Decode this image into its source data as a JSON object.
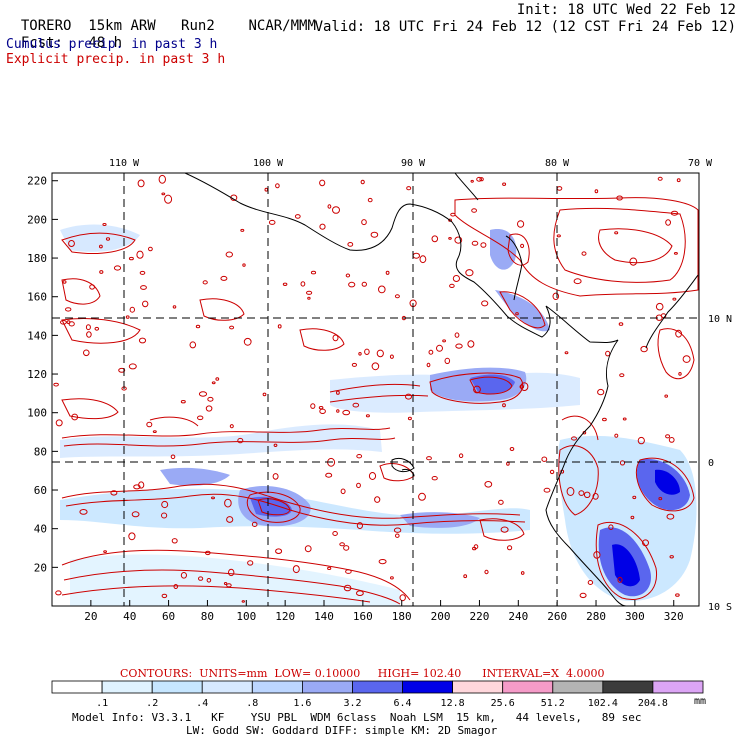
{
  "header": {
    "model": "TORERO",
    "resolution": "15km ARW",
    "run": "Run2",
    "org": "NCAR/MMM",
    "fcst_label": "Fcst:",
    "fcst_value": "48 h",
    "init": "Init: 18 UTC Wed 22 Feb 12",
    "valid": "Valid: 18 UTC Fri 24 Feb 12 (12 CST Fri 24 Feb 12)"
  },
  "fields": {
    "cumulus": "Cumulus precip. in past 3 h",
    "explicit": "Explicit precip. in past 3 h"
  },
  "colors": {
    "cumulus": "#00008b",
    "explicit": "#cc0000",
    "grid": "#000000"
  },
  "map": {
    "lon_labels": [
      "110 W",
      "100 W",
      "90 W",
      "80 W",
      "70 W"
    ],
    "lat_labels": [
      "10 N",
      "0",
      "10 S"
    ],
    "x_ticks": [
      "20",
      "40",
      "60",
      "80",
      "100",
      "120",
      "140",
      "160",
      "180",
      "200",
      "220",
      "240",
      "260",
      "280",
      "300",
      "320"
    ],
    "y_ticks": [
      "20",
      "40",
      "60",
      "80",
      "100",
      "120",
      "140",
      "160",
      "180",
      "200",
      "220"
    ]
  },
  "contours": {
    "label": "CONTOURS:",
    "units": "UNITS=mm",
    "low": "LOW= 0.10000",
    "high": "HIGH= 102.40",
    "interval": "INTERVAL=X  4.0000"
  },
  "colorbar": {
    "unit": "mm",
    "labels": [
      ".1",
      ".2",
      ".4",
      ".8",
      "1.6",
      "3.2",
      "6.4",
      "12.8",
      "25.6",
      "51.2",
      "102.4",
      "204.8"
    ],
    "colors": [
      "#ffffff",
      "#e0f3ff",
      "#c6e6ff",
      "#d7e9ff",
      "#bcd6ff",
      "#9aaaf5",
      "#5a66ee",
      "#0000e6",
      "#ffd7dc",
      "#f59bc8",
      "#b4b4b4",
      "#3c3c3c",
      "#dca5f5"
    ]
  },
  "footer": {
    "line1": "Model Info: V3.3.1   KF    YSU PBL  WDM 6class  Noah LSM  15 km,   44 levels,   89 sec",
    "line2": "LW: Godd SW: Goddard DIFF: simple KM: 2D Smagor"
  }
}
